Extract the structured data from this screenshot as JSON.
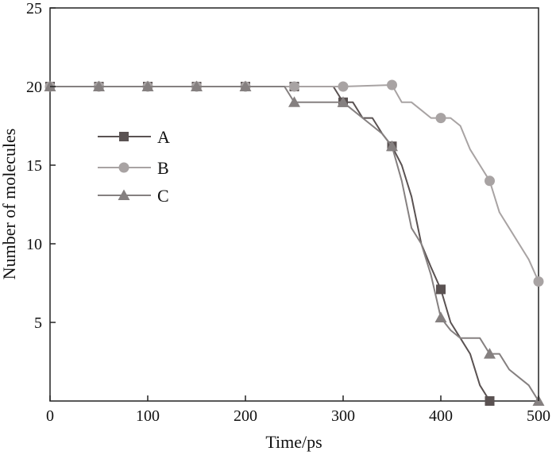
{
  "chart_data": {
    "type": "line",
    "title": "",
    "xlabel": "Time/ps",
    "ylabel": "Number of molecules",
    "xlim": [
      0,
      500
    ],
    "ylim": [
      0,
      25
    ],
    "x_ticks": [
      0,
      100,
      200,
      300,
      400,
      500
    ],
    "y_ticks": [
      5,
      10,
      15,
      20,
      25
    ],
    "x_tick_labels": [
      "0",
      "100",
      "200",
      "300",
      "400",
      "500"
    ],
    "y_tick_labels": [
      "5",
      "10",
      "15",
      "20",
      "25"
    ],
    "grid": false,
    "legend_position": "left",
    "series": [
      {
        "name": "A",
        "color": "#5a5252",
        "marker": "square",
        "x": [
          0,
          50,
          100,
          150,
          200,
          250,
          290,
          300,
          310,
          320,
          330,
          340,
          350,
          360,
          370,
          380,
          390,
          400,
          410,
          420,
          430,
          440,
          450
        ],
        "y": [
          20,
          20,
          20,
          20,
          20,
          20,
          20,
          19,
          19,
          18,
          18,
          17,
          16.2,
          15,
          13,
          10,
          8.5,
          7.1,
          5,
          4,
          3,
          1,
          0
        ],
        "marker_x": [
          0,
          50,
          100,
          150,
          200,
          250,
          300,
          350,
          400,
          450
        ],
        "marker_y": [
          20,
          20,
          20,
          20,
          20,
          20,
          19,
          16.2,
          7.1,
          0
        ]
      },
      {
        "name": "B",
        "color": "#a8a3a3",
        "marker": "circle",
        "x": [
          0,
          50,
          100,
          150,
          200,
          250,
          300,
          350,
          360,
          370,
          380,
          390,
          400,
          410,
          420,
          430,
          440,
          450,
          460,
          470,
          480,
          490,
          500
        ],
        "y": [
          20,
          20,
          20,
          20,
          20,
          20,
          20,
          20.1,
          19,
          19,
          18.5,
          18,
          18,
          18,
          17.5,
          16,
          15,
          14,
          12,
          11,
          10,
          9,
          7.6
        ],
        "marker_x": [
          0,
          50,
          100,
          150,
          200,
          250,
          300,
          350,
          400,
          450,
          500
        ],
        "marker_y": [
          20,
          20,
          20,
          20,
          20,
          20,
          20,
          20.1,
          18,
          14,
          7.6
        ]
      },
      {
        "name": "C",
        "color": "#858080",
        "marker": "triangle",
        "x": [
          0,
          50,
          100,
          150,
          200,
          240,
          250,
          300,
          310,
          320,
          330,
          340,
          350,
          360,
          370,
          380,
          390,
          400,
          410,
          420,
          430,
          440,
          450,
          460,
          470,
          480,
          490,
          500
        ],
        "y": [
          20,
          20,
          20,
          20,
          20,
          20,
          19,
          19,
          18.5,
          18,
          17.5,
          17,
          16.2,
          14,
          11,
          10,
          8,
          5.3,
          4.5,
          4,
          4,
          4,
          3,
          3,
          2,
          1.5,
          1,
          0
        ],
        "marker_x": [
          0,
          50,
          100,
          150,
          200,
          250,
          300,
          350,
          400,
          450,
          500
        ],
        "marker_y": [
          20,
          20,
          20,
          20,
          20,
          19,
          19,
          16.2,
          5.3,
          3,
          0
        ]
      }
    ]
  }
}
